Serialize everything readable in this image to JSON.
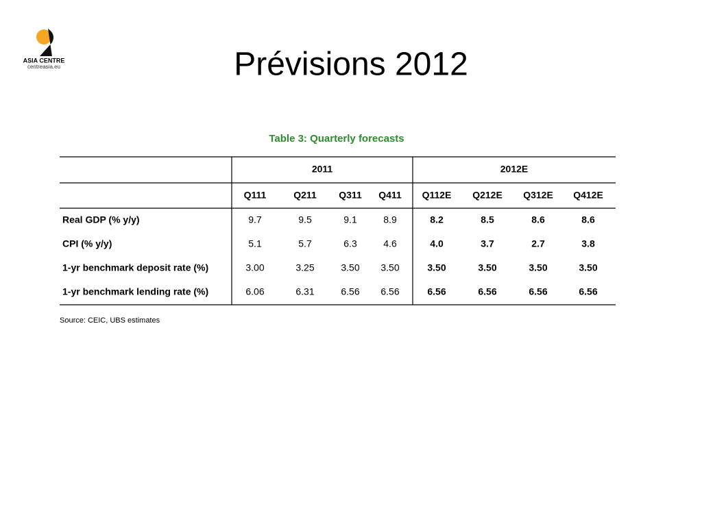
{
  "logo": {
    "name": "ASIA CENTRE",
    "url": "centreasia.eu"
  },
  "title": "Prévisions 2012",
  "table": {
    "caption": "Table 3: Quarterly forecasts",
    "groups": [
      "2011",
      "2012E"
    ],
    "columns": [
      "Q111",
      "Q211",
      "Q311",
      "Q411",
      "Q112E",
      "Q212E",
      "Q312E",
      "Q412E"
    ],
    "rows": [
      {
        "label": "Real GDP (% y/y)",
        "values": [
          "9.7",
          "9.5",
          "9.1",
          "8.9",
          "8.2",
          "8.5",
          "8.6",
          "8.6"
        ]
      },
      {
        "label": "CPI (% y/y)",
        "values": [
          "5.1",
          "5.7",
          "6.3",
          "4.6",
          "4.0",
          "3.7",
          "2.7",
          "3.8"
        ]
      },
      {
        "label": "1-yr benchmark deposit rate (%)",
        "values": [
          "3.00",
          "3.25",
          "3.50",
          "3.50",
          "3.50",
          "3.50",
          "3.50",
          "3.50"
        ]
      },
      {
        "label": "1-yr benchmark lending rate (%)",
        "values": [
          "6.06",
          "6.31",
          "6.56",
          "6.56",
          "6.56",
          "6.56",
          "6.56",
          "6.56"
        ]
      }
    ],
    "source": "Source: CEIC, UBS estimates"
  }
}
